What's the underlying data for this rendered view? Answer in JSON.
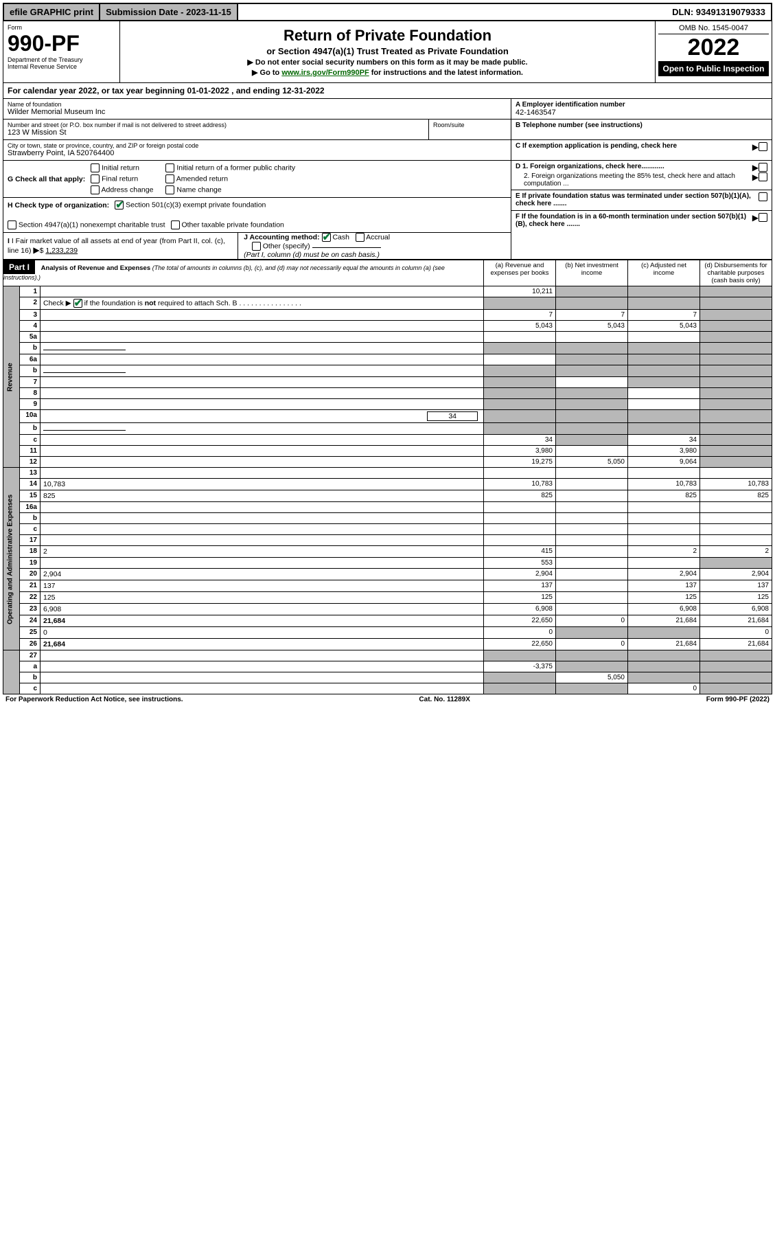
{
  "topbar": {
    "efile": "efile GRAPHIC print",
    "subdate_label": "Submission Date - 2023-11-15",
    "dln": "DLN: 93491319079333"
  },
  "header": {
    "form_label": "Form",
    "form_num": "990-PF",
    "dept": "Department of the Treasury",
    "irs": "Internal Revenue Service",
    "title": "Return of Private Foundation",
    "subtitle": "or Section 4947(a)(1) Trust Treated as Private Foundation",
    "note1": "▶ Do not enter social security numbers on this form as it may be made public.",
    "note2_pre": "▶ Go to ",
    "note2_link": "www.irs.gov/Form990PF",
    "note2_post": " for instructions and the latest information.",
    "omb": "OMB No. 1545-0047",
    "year": "2022",
    "open": "Open to Public Inspection"
  },
  "calyear": {
    "text_pre": "For calendar year 2022, or tax year beginning ",
    "begin": "01-01-2022",
    "mid": " , and ending ",
    "end": "12-31-2022"
  },
  "entity": {
    "name_label": "Name of foundation",
    "name": "Wilder Memorial Museum Inc",
    "addr_label": "Number and street (or P.O. box number if mail is not delivered to street address)",
    "addr": "123 W Mission St",
    "room_label": "Room/suite",
    "room": "",
    "city_label": "City or town, state or province, country, and ZIP or foreign postal code",
    "city": "Strawberry Point, IA 520764400",
    "A_label": "A Employer identification number",
    "A_val": "42-1463547",
    "B_label": "B Telephone number (see instructions)",
    "B_val": "",
    "C_label": "C If exemption application is pending, check here",
    "D1_label": "D 1. Foreign organizations, check here............",
    "D2_label": "2. Foreign organizations meeting the 85% test, check here and attach computation ...",
    "E_label": "E If private foundation status was terminated under section 507(b)(1)(A), check here .......",
    "F_label": "F If the foundation is in a 60-month termination under section 507(b)(1)(B), check here ......."
  },
  "G": {
    "label": "G Check all that apply:",
    "opts": [
      "Initial return",
      "Final return",
      "Address change",
      "Initial return of a former public charity",
      "Amended return",
      "Name change"
    ]
  },
  "H": {
    "label": "H Check type of organization:",
    "opt1": "Section 501(c)(3) exempt private foundation",
    "opt2": "Section 4947(a)(1) nonexempt charitable trust",
    "opt3": "Other taxable private foundation"
  },
  "I": {
    "label": "I Fair market value of all assets at end of year (from Part II, col. (c), line 16)",
    "val": "1,233,239"
  },
  "J": {
    "label": "J Accounting method:",
    "cash": "Cash",
    "accrual": "Accrual",
    "other": "Other (specify)",
    "note": "(Part I, column (d) must be on cash basis.)"
  },
  "part1": {
    "badge": "Part I",
    "title": "Analysis of Revenue and Expenses",
    "title_note": "(The total of amounts in columns (b), (c), and (d) may not necessarily equal the amounts in column (a) (see instructions).)",
    "col_a": "(a) Revenue and expenses per books",
    "col_b": "(b) Net investment income",
    "col_c": "(c) Adjusted net income",
    "col_d": "(d) Disbursements for charitable purposes (cash basis only)"
  },
  "side": {
    "revenue": "Revenue",
    "expenses": "Operating and Administrative Expenses"
  },
  "rows": [
    {
      "n": "1",
      "d": "",
      "a": "10,211",
      "b": "",
      "c": "",
      "shade_b": true,
      "shade_c": true,
      "shade_d": true
    },
    {
      "n": "2",
      "d": "",
      "a": "",
      "b": "",
      "c": "",
      "shade_a": true,
      "shade_b": true,
      "shade_c": true,
      "shade_d": true,
      "bold_not": true,
      "checked": true
    },
    {
      "n": "3",
      "d": "",
      "a": "7",
      "b": "7",
      "c": "7",
      "shade_d": true
    },
    {
      "n": "4",
      "d": "",
      "a": "5,043",
      "b": "5,043",
      "c": "5,043",
      "shade_d": true
    },
    {
      "n": "5a",
      "d": "",
      "a": "",
      "b": "",
      "c": "",
      "shade_d": true
    },
    {
      "n": "b",
      "d": "",
      "a": "",
      "b": "",
      "c": "",
      "shade_a": true,
      "shade_b": true,
      "shade_c": true,
      "shade_d": true,
      "inline_blank": true
    },
    {
      "n": "6a",
      "d": "",
      "a": "",
      "b": "",
      "c": "",
      "shade_b": true,
      "shade_c": true,
      "shade_d": true
    },
    {
      "n": "b",
      "d": "",
      "a": "",
      "b": "",
      "c": "",
      "shade_a": true,
      "shade_b": true,
      "shade_c": true,
      "shade_d": true,
      "inline_blank": true
    },
    {
      "n": "7",
      "d": "",
      "a": "",
      "b": "",
      "c": "",
      "shade_a": true,
      "shade_c": true,
      "shade_d": true
    },
    {
      "n": "8",
      "d": "",
      "a": "",
      "b": "",
      "c": "",
      "shade_a": true,
      "shade_b": true,
      "shade_d": true
    },
    {
      "n": "9",
      "d": "",
      "a": "",
      "b": "",
      "c": "",
      "shade_a": true,
      "shade_b": true,
      "shade_d": true
    },
    {
      "n": "10a",
      "d": "",
      "a": "",
      "b": "",
      "c": "",
      "shade_b": true,
      "shade_c": true,
      "shade_d": true,
      "inline_val": "34",
      "inline_blank": true,
      "shade_a": true
    },
    {
      "n": "b",
      "d": "",
      "a": "",
      "b": "",
      "c": "",
      "shade_a": true,
      "shade_b": true,
      "shade_c": true,
      "shade_d": true,
      "inline_blank": true
    },
    {
      "n": "c",
      "d": "",
      "a": "34",
      "b": "",
      "c": "34",
      "shade_b": true,
      "shade_d": true
    },
    {
      "n": "11",
      "d": "",
      "a": "3,980",
      "b": "",
      "c": "3,980",
      "shade_d": true
    },
    {
      "n": "12",
      "d": "",
      "a": "19,275",
      "b": "5,050",
      "c": "9,064",
      "shade_d": true,
      "bold": true
    }
  ],
  "exp_rows": [
    {
      "n": "13",
      "d": "",
      "a": "",
      "b": "",
      "c": ""
    },
    {
      "n": "14",
      "d": "10,783",
      "a": "10,783",
      "b": "",
      "c": "10,783"
    },
    {
      "n": "15",
      "d": "825",
      "a": "825",
      "b": "",
      "c": "825"
    },
    {
      "n": "16a",
      "d": "",
      "a": "",
      "b": "",
      "c": ""
    },
    {
      "n": "b",
      "d": "",
      "a": "",
      "b": "",
      "c": ""
    },
    {
      "n": "c",
      "d": "",
      "a": "",
      "b": "",
      "c": ""
    },
    {
      "n": "17",
      "d": "",
      "a": "",
      "b": "",
      "c": ""
    },
    {
      "n": "18",
      "d": "2",
      "a": "415",
      "b": "",
      "c": "2"
    },
    {
      "n": "19",
      "d": "",
      "a": "553",
      "b": "",
      "c": "",
      "shade_d": true
    },
    {
      "n": "20",
      "d": "2,904",
      "a": "2,904",
      "b": "",
      "c": "2,904"
    },
    {
      "n": "21",
      "d": "137",
      "a": "137",
      "b": "",
      "c": "137"
    },
    {
      "n": "22",
      "d": "125",
      "a": "125",
      "b": "",
      "c": "125"
    },
    {
      "n": "23",
      "d": "6,908",
      "a": "6,908",
      "b": "",
      "c": "6,908"
    },
    {
      "n": "24",
      "d": "21,684",
      "a": "22,650",
      "b": "0",
      "c": "21,684",
      "bold": true
    },
    {
      "n": "25",
      "d": "0",
      "a": "0",
      "b": "",
      "c": "",
      "shade_b": true,
      "shade_c": true
    },
    {
      "n": "26",
      "d": "21,684",
      "a": "22,650",
      "b": "0",
      "c": "21,684",
      "bold": true
    }
  ],
  "net_rows": [
    {
      "n": "27",
      "d": "",
      "a": "",
      "b": "",
      "c": "",
      "shade_a": true,
      "shade_b": true,
      "shade_c": true,
      "shade_d": true
    },
    {
      "n": "a",
      "d": "",
      "a": "-3,375",
      "b": "",
      "c": "",
      "shade_b": true,
      "shade_c": true,
      "shade_d": true,
      "bold": true
    },
    {
      "n": "b",
      "d": "",
      "a": "",
      "b": "5,050",
      "c": "",
      "shade_a": true,
      "shade_c": true,
      "shade_d": true,
      "bold": true
    },
    {
      "n": "c",
      "d": "",
      "a": "",
      "b": "",
      "c": "0",
      "shade_a": true,
      "shade_b": true,
      "shade_d": true,
      "bold": true
    }
  ],
  "footer": {
    "left": "For Paperwork Reduction Act Notice, see instructions.",
    "mid": "Cat. No. 11289X",
    "right": "Form 990-PF (2022)"
  }
}
